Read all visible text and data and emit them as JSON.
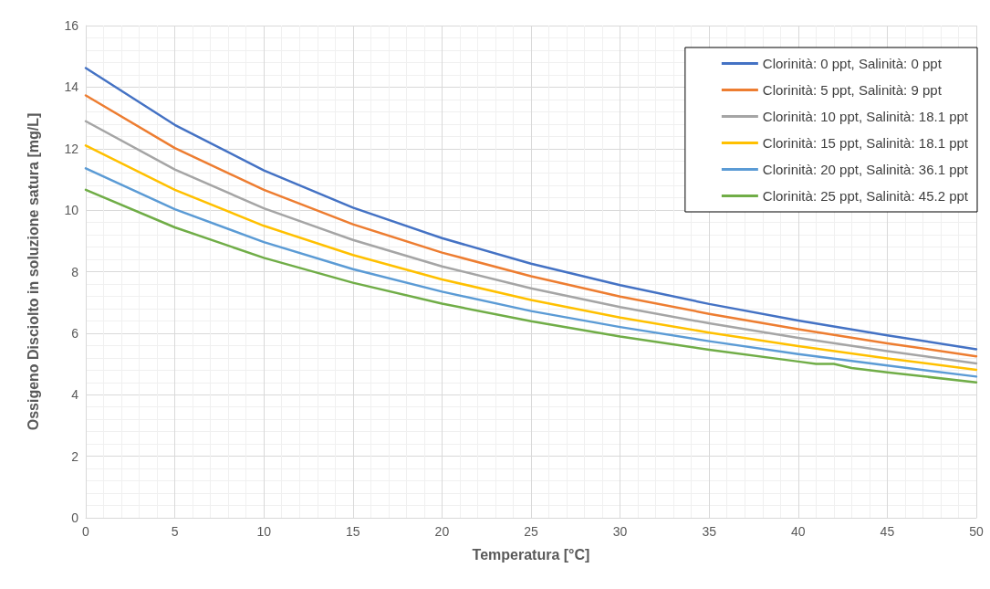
{
  "chart_data": {
    "type": "line",
    "xlabel": "Temperatura [°C]",
    "ylabel": "Ossigeno Disciolto in soluzione satura [mg/L]",
    "x": [
      0,
      5,
      10,
      15,
      20,
      25,
      30,
      35,
      40,
      45,
      50
    ],
    "series": [
      {
        "name": "Clorinità: 0 ppt, Salinità: 0 ppt",
        "color": "#4472c4",
        "values": [
          14.62,
          12.77,
          11.29,
          10.08,
          9.09,
          8.26,
          7.56,
          6.95,
          6.41,
          5.93,
          5.48
        ]
      },
      {
        "name": "Clorinità: 5 ppt, Salinità: 9 ppt",
        "color": "#ed7d31",
        "values": [
          13.73,
          12.02,
          10.66,
          9.54,
          8.62,
          7.85,
          7.19,
          6.63,
          6.13,
          5.67,
          5.25
        ]
      },
      {
        "name": "Clorinità: 10 ppt, Salinità: 18.1 ppt",
        "color": "#a5a5a5",
        "values": [
          12.89,
          11.32,
          10.06,
          9.03,
          8.17,
          7.46,
          6.85,
          6.32,
          5.85,
          5.42,
          5.02
        ]
      },
      {
        "name": "Clorinità: 15 ppt, Salinità: 18.1 ppt",
        "color": "#ffc000",
        "values": [
          12.1,
          10.66,
          9.49,
          8.54,
          7.75,
          7.08,
          6.51,
          6.02,
          5.58,
          5.18,
          4.81
        ]
      },
      {
        "name": "Clorinità: 20 ppt, Salinità: 36.1 ppt",
        "color": "#5b9bd5",
        "values": [
          11.36,
          10.03,
          8.96,
          8.08,
          7.35,
          6.72,
          6.2,
          5.74,
          5.32,
          4.95,
          4.59
        ]
      },
      {
        "name": "Clorinità: 25 ppt, Salinità: 45.2 ppt",
        "color": "#70ad47",
        "x": [
          0,
          5,
          10,
          15,
          20,
          25,
          30,
          35,
          40,
          41,
          42,
          43,
          45,
          50
        ],
        "values": [
          10.66,
          9.44,
          8.45,
          7.64,
          6.96,
          6.39,
          5.89,
          5.46,
          5.08,
          5.0,
          5.0,
          4.87,
          4.73,
          4.4
        ]
      }
    ],
    "xlim": [
      0,
      50
    ],
    "xticks": [
      0,
      5,
      10,
      15,
      20,
      25,
      30,
      35,
      40,
      45,
      50
    ],
    "ylim": [
      0,
      16
    ],
    "yticks": [
      0,
      2,
      4,
      6,
      8,
      10,
      12,
      14,
      16
    ],
    "grid": true,
    "legend": "top right",
    "marker": "none",
    "line_style": "solid"
  }
}
